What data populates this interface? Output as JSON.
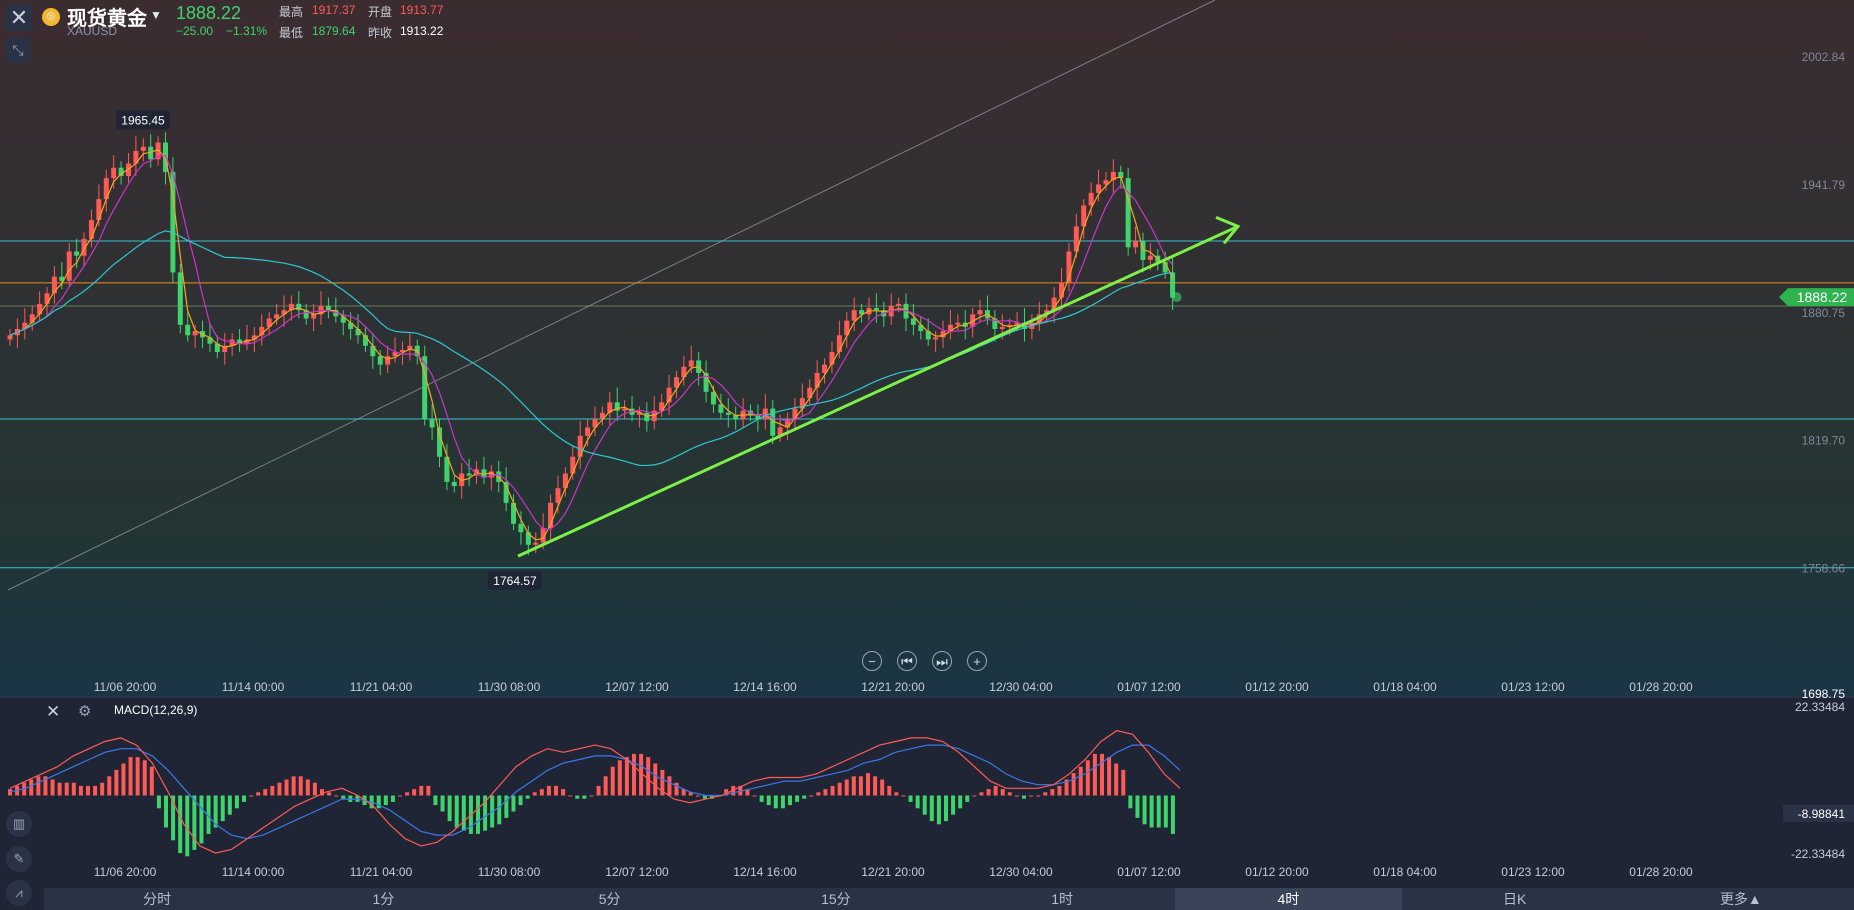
{
  "header": {
    "name": "现货黄金",
    "symbol": "XAUUSD",
    "price": "1888.22",
    "change": "−25.00",
    "change_pct": "−1.31%",
    "high_label": "最高",
    "high": "1917.37",
    "open_label": "开盘",
    "open": "1913.77",
    "low_label": "最低",
    "low": "1879.64",
    "prev_label": "昨收",
    "prev": "1913.22"
  },
  "controls": {
    "close": "✕",
    "zoom": "⤡",
    "minus": "−",
    "prev": "⏮",
    "next": "⏭",
    "plus": "+"
  },
  "icons": [
    "close-icon",
    "zoom-icon",
    "gold-coin-icon",
    "caret-down-icon",
    "gear-icon",
    "candle-icon",
    "pencil-icon",
    "indicator-icon"
  ],
  "colors": {
    "bull": "#ff5a55",
    "bear": "#3fd36b",
    "ma5": "#f5a623",
    "ma10": "#c935c9",
    "ma60": "#2ec8cf",
    "hline": "#38d3e2",
    "orange_line": "#ff9a1a",
    "trend": "#7cf048",
    "price_tag": "#2fb34f"
  },
  "chart_data": [
    {
      "type": "candlestick",
      "title": "现货黄金 XAUUSD",
      "timeframe": "4时",
      "x_ticks": [
        "11/06 20:00",
        "11/14 00:00",
        "11/21 04:00",
        "11/30 08:00",
        "12/07 12:00",
        "12/14 16:00",
        "12/21 20:00",
        "12/30 04:00",
        "01/07 12:00",
        "01/12 20:00",
        "01/18 04:00",
        "01/23 12:00",
        "01/28 20:00"
      ],
      "y_ticks": [
        "2002.84",
        "1941.79",
        "1880.75",
        "1819.70",
        "1758.66",
        "1698.75"
      ],
      "ylim": [
        1698.75,
        2002.84
      ],
      "last_price": "1888.22",
      "annotations": {
        "high": "1965.45",
        "low": "1764.57"
      },
      "horizontal_lines": [
        1915,
        1895,
        1884,
        1830,
        1759
      ],
      "trend_line": {
        "from": [
          "11/30 08:00",
          1764.57
        ],
        "to": [
          "01/07 12:00",
          1918
        ]
      },
      "closes": [
        1870,
        1873,
        1876,
        1880,
        1885,
        1890,
        1898,
        1896,
        1910,
        1908,
        1916,
        1925,
        1935,
        1945,
        1950,
        1946,
        1952,
        1958,
        1960,
        1954,
        1962,
        1948,
        1900,
        1875,
        1870,
        1872,
        1869,
        1866,
        1862,
        1865,
        1868,
        1866,
        1868,
        1870,
        1874,
        1878,
        1880,
        1882,
        1885,
        1882,
        1878,
        1880,
        1884,
        1882,
        1879,
        1876,
        1873,
        1870,
        1865,
        1860,
        1856,
        1860,
        1862,
        1863,
        1865,
        1860,
        1830,
        1826,
        1812,
        1800,
        1798,
        1804,
        1803,
        1806,
        1802,
        1805,
        1800,
        1790,
        1780,
        1776,
        1770,
        1771,
        1778,
        1790,
        1797,
        1804,
        1812,
        1822,
        1826,
        1830,
        1833,
        1838,
        1834,
        1835,
        1832,
        1833,
        1829,
        1834,
        1838,
        1845,
        1850,
        1855,
        1858,
        1852,
        1843,
        1837,
        1833,
        1832,
        1830,
        1834,
        1832,
        1830,
        1835,
        1822,
        1826,
        1830,
        1835,
        1840,
        1845,
        1852,
        1856,
        1862,
        1870,
        1877,
        1882,
        1880,
        1883,
        1882,
        1879,
        1884,
        1885,
        1878,
        1875,
        1872,
        1868,
        1869,
        1872,
        1875,
        1876,
        1874,
        1880,
        1882,
        1878,
        1873,
        1874,
        1875,
        1876,
        1873,
        1876,
        1880,
        1882,
        1888,
        1895,
        1910,
        1922,
        1932,
        1938,
        1942,
        1944,
        1948,
        1945,
        1912,
        1915,
        1906,
        1908,
        1905,
        1900,
        1888
      ]
    },
    {
      "type": "bar",
      "title": "MACD(12,26,9)",
      "y_ticks": [
        "22.33484",
        "-8.98841",
        "-22.33484"
      ],
      "ylim": [
        -22.33484,
        22.33484
      ],
      "current": "-8.98841",
      "histogram": [
        2,
        3,
        4,
        5,
        6,
        6,
        5,
        4,
        4,
        4,
        3,
        3,
        3,
        4,
        6,
        8,
        10,
        12,
        12,
        11,
        9,
        -4,
        -10,
        -14,
        -18,
        -19,
        -17,
        -15,
        -12,
        -10,
        -8,
        -6,
        -4,
        -2,
        0,
        1,
        2,
        3,
        4,
        5,
        6,
        6,
        5,
        4,
        2,
        1,
        0,
        -1,
        -2,
        -2,
        -3,
        -4,
        -4,
        -3,
        -2,
        0,
        1,
        2,
        3,
        3,
        -3,
        -5,
        -8,
        -10,
        -11,
        -12,
        -12,
        -11,
        -10,
        -9,
        -7,
        -5,
        -3,
        -1,
        1,
        2,
        3,
        3,
        2,
        0,
        -1,
        -1,
        0,
        3,
        6,
        9,
        11,
        12,
        13,
        13,
        12,
        10,
        8,
        6,
        4,
        2,
        1,
        0,
        -1,
        -1,
        0,
        2,
        3,
        3,
        2,
        0,
        -2,
        -3,
        -4,
        -4,
        -3,
        -2,
        -1,
        0,
        1,
        2,
        3,
        4,
        5,
        6,
        6,
        7,
        6,
        5,
        3,
        1,
        0,
        -2,
        -4,
        -6,
        -8,
        -9,
        -8,
        -6,
        -4,
        -2,
        0,
        1,
        2,
        3,
        2,
        1,
        0,
        -1,
        0,
        0,
        1,
        2,
        3,
        5,
        7,
        9,
        11,
        13,
        13,
        12,
        10,
        8,
        -4,
        -7,
        -9,
        -10,
        -10,
        -10,
        -12
      ],
      "dif": [
        2,
        4,
        6,
        8,
        11,
        13,
        15,
        16,
        14,
        9,
        1,
        -8,
        -14,
        -16,
        -15,
        -12,
        -9,
        -6,
        -3,
        -1,
        1,
        2,
        0,
        -3,
        -8,
        -12,
        -14,
        -13,
        -10,
        -6,
        -2,
        3,
        8,
        11,
        13,
        12,
        13,
        14,
        13,
        10,
        6,
        2,
        -1,
        -2,
        -1,
        0,
        2,
        4,
        5,
        5,
        5,
        6,
        8,
        10,
        12,
        14,
        15,
        16,
        16,
        15,
        12,
        8,
        4,
        2,
        2,
        2,
        3,
        6,
        10,
        15,
        18,
        17,
        12,
        6,
        2
      ],
      "dea": [
        1,
        2,
        4,
        6,
        8,
        10,
        12,
        13,
        13,
        11,
        7,
        2,
        -3,
        -8,
        -11,
        -12,
        -11,
        -9,
        -7,
        -5,
        -3,
        -1,
        -1,
        -2,
        -4,
        -7,
        -10,
        -11,
        -11,
        -9,
        -6,
        -3,
        1,
        4,
        7,
        9,
        10,
        11,
        11,
        10,
        8,
        5,
        3,
        1,
        0,
        0,
        1,
        2,
        3,
        4,
        4,
        5,
        6,
        7,
        9,
        10,
        12,
        13,
        14,
        14,
        13,
        11,
        9,
        6,
        4,
        3,
        3,
        4,
        6,
        9,
        12,
        14,
        14,
        11,
        7
      ]
    }
  ],
  "macd_title": "MACD(12,26,9)",
  "tabs": [
    "分时",
    "1分",
    "5分",
    "15分",
    "1时",
    "4时",
    "日K",
    "更多▲"
  ],
  "active_tab": "4时"
}
